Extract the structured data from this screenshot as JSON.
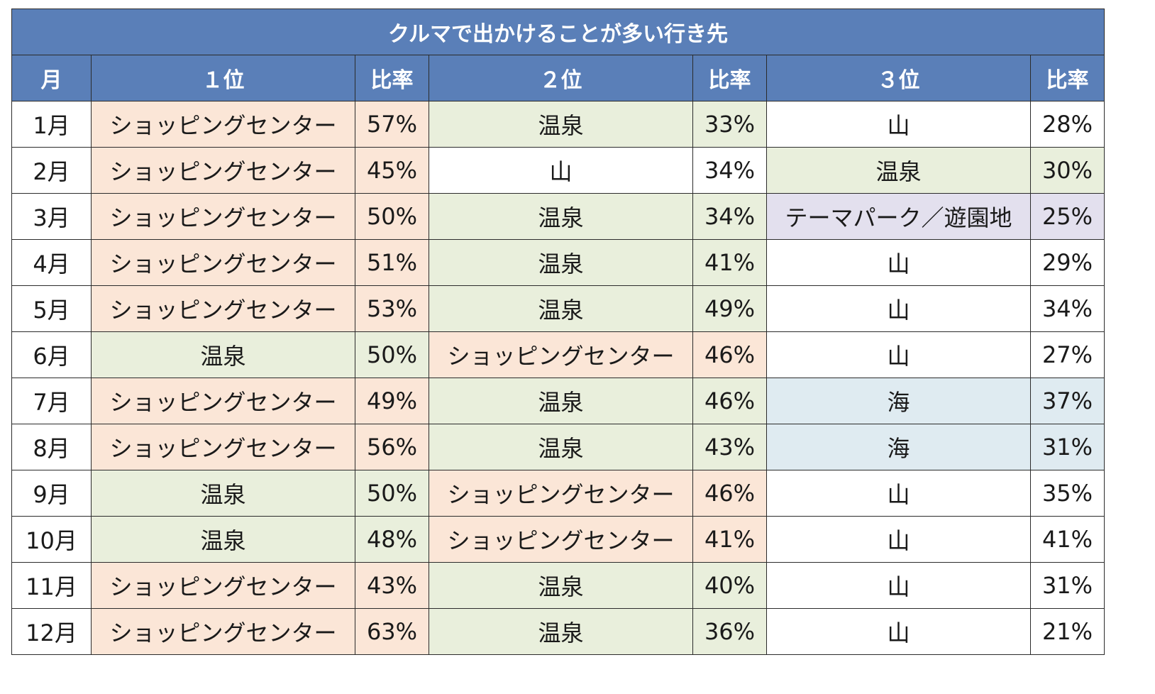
{
  "chart_data": {
    "type": "table",
    "title": "クルマで出かけることが多い行き先",
    "columns": [
      "月",
      "１位",
      "比率",
      "２位",
      "比率",
      "３位",
      "比率"
    ],
    "rows": [
      {
        "month": "1月",
        "r1": "ショッピングセンター",
        "p1": "57%",
        "r2": "温泉",
        "p2": "33%",
        "r3": "山",
        "p3": "28%"
      },
      {
        "month": "2月",
        "r1": "ショッピングセンター",
        "p1": "45%",
        "r2": "山",
        "p2": "34%",
        "r3": "温泉",
        "p3": "30%"
      },
      {
        "month": "3月",
        "r1": "ショッピングセンター",
        "p1": "50%",
        "r2": "温泉",
        "p2": "34%",
        "r3": "テーマパーク／遊園地",
        "p3": "25%"
      },
      {
        "month": "4月",
        "r1": "ショッピングセンター",
        "p1": "51%",
        "r2": "温泉",
        "p2": "41%",
        "r3": "山",
        "p3": "29%"
      },
      {
        "month": "5月",
        "r1": "ショッピングセンター",
        "p1": "53%",
        "r2": "温泉",
        "p2": "49%",
        "r3": "山",
        "p3": "34%"
      },
      {
        "month": "6月",
        "r1": "温泉",
        "p1": "50%",
        "r2": "ショッピングセンター",
        "p2": "46%",
        "r3": "山",
        "p3": "27%"
      },
      {
        "month": "7月",
        "r1": "ショッピングセンター",
        "p1": "49%",
        "r2": "温泉",
        "p2": "46%",
        "r3": "海",
        "p3": "37%"
      },
      {
        "month": "8月",
        "r1": "ショッピングセンター",
        "p1": "56%",
        "r2": "温泉",
        "p2": "43%",
        "r3": "海",
        "p3": "31%"
      },
      {
        "month": "9月",
        "r1": "温泉",
        "p1": "50%",
        "r2": "ショッピングセンター",
        "p2": "46%",
        "r3": "山",
        "p3": "35%"
      },
      {
        "month": "10月",
        "r1": "温泉",
        "p1": "48%",
        "r2": "ショッピングセンター",
        "p2": "41%",
        "r3": "山",
        "p3": "41%"
      },
      {
        "month": "11月",
        "r1": "ショッピングセンター",
        "p1": "43%",
        "r2": "温泉",
        "p2": "40%",
        "r3": "山",
        "p3": "31%"
      },
      {
        "month": "12月",
        "r1": "ショッピングセンター",
        "p1": "63%",
        "r2": "温泉",
        "p2": "36%",
        "r3": "山",
        "p3": "21%"
      }
    ]
  },
  "colors": {
    "header_bg": "#5a7fb8",
    "header_text": "#ffffff",
    "ショッピングセンター": "#fbe6d7",
    "温泉": "#e9efdc",
    "山": "#ffffff",
    "海": "#dfebf1",
    "テーマパーク／遊園地": "#e3e0ee"
  }
}
